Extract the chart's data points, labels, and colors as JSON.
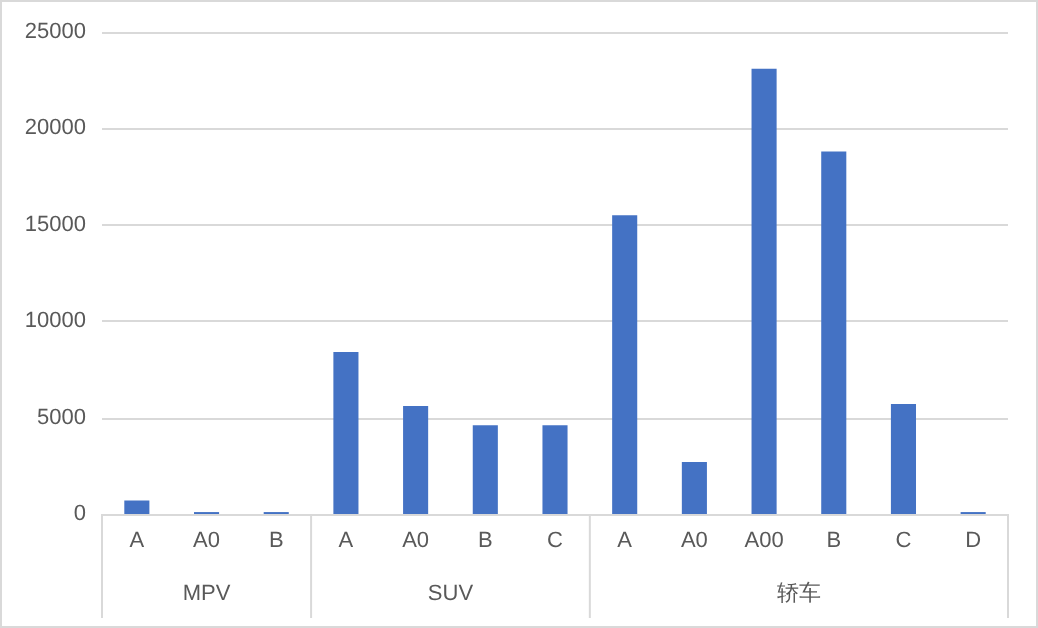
{
  "chart_data": {
    "type": "bar",
    "categories": [
      "A",
      "A0",
      "B",
      "A",
      "A0",
      "B",
      "C",
      "A",
      "A0",
      "A00",
      "B",
      "C",
      "D"
    ],
    "values": [
      700,
      100,
      100,
      8400,
      5600,
      4600,
      4600,
      15500,
      2700,
      23100,
      18800,
      5700,
      100
    ],
    "color": "#4472c4",
    "ylim": [
      0,
      25000
    ],
    "yticks": [
      0,
      5000,
      10000,
      15000,
      20000,
      25000
    ],
    "grid": "y",
    "annotations": [
      "MPV",
      "SUV",
      "轿车"
    ]
  }
}
